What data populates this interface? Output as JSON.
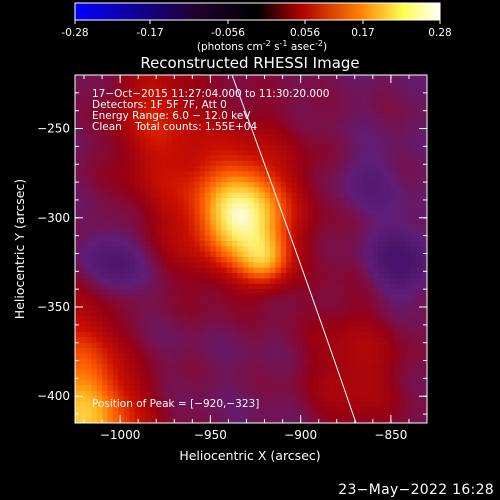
{
  "colorbar": {
    "ticks": [
      "-0.28",
      "-0.17",
      "-0.056",
      "0.056",
      "0.17",
      "0.28"
    ],
    "units_prefix": "(photons cm",
    "units_exp1": "-2",
    "units_mid": " s",
    "units_exp2": "-1",
    "units_mid2": " asec",
    "units_exp3": "-2",
    "units_suffix": ")",
    "colors": [
      "#0000ff",
      "#000000",
      "#c80000",
      "#ff9000",
      "#ffff60",
      "#ffffff"
    ]
  },
  "chart_data": {
    "type": "heatmap",
    "title": "Reconstructed RHESSI Image",
    "xlabel": "Heliocentric X (arcsec)",
    "ylabel": "Heliocentric Y (arcsec)",
    "xlim": [
      -1025,
      -830
    ],
    "ylim": [
      -415,
      -220
    ],
    "x_ticks": [
      -1000,
      -950,
      -900,
      -850
    ],
    "y_ticks": [
      -250,
      -300,
      -350,
      -400
    ],
    "x_tick_labels": [
      "−1000",
      "−950",
      "−900",
      "−850"
    ],
    "y_tick_labels": [
      "−250",
      "−300",
      "−350",
      "−400"
    ],
    "value_range": [
      -0.28,
      0.28
    ],
    "sources": [
      {
        "x": -932,
        "y": -300,
        "peak": 0.25
      },
      {
        "x": -920,
        "y": -323,
        "peak": 0.28
      }
    ],
    "annotations": {
      "time": "17−Oct−2015 11:27:04.000 to 11:30:20.000",
      "detectors": "Detectors: 1F 5F 7F, Att 0",
      "energy": "Energy Range: 6.0 − 12.0 keV",
      "clean": "Clean    Total counts: 1.55E+04",
      "peak": "Position of Peak = [−920,−323]"
    }
  },
  "footer": {
    "date": "23−May−2022 16:28"
  }
}
